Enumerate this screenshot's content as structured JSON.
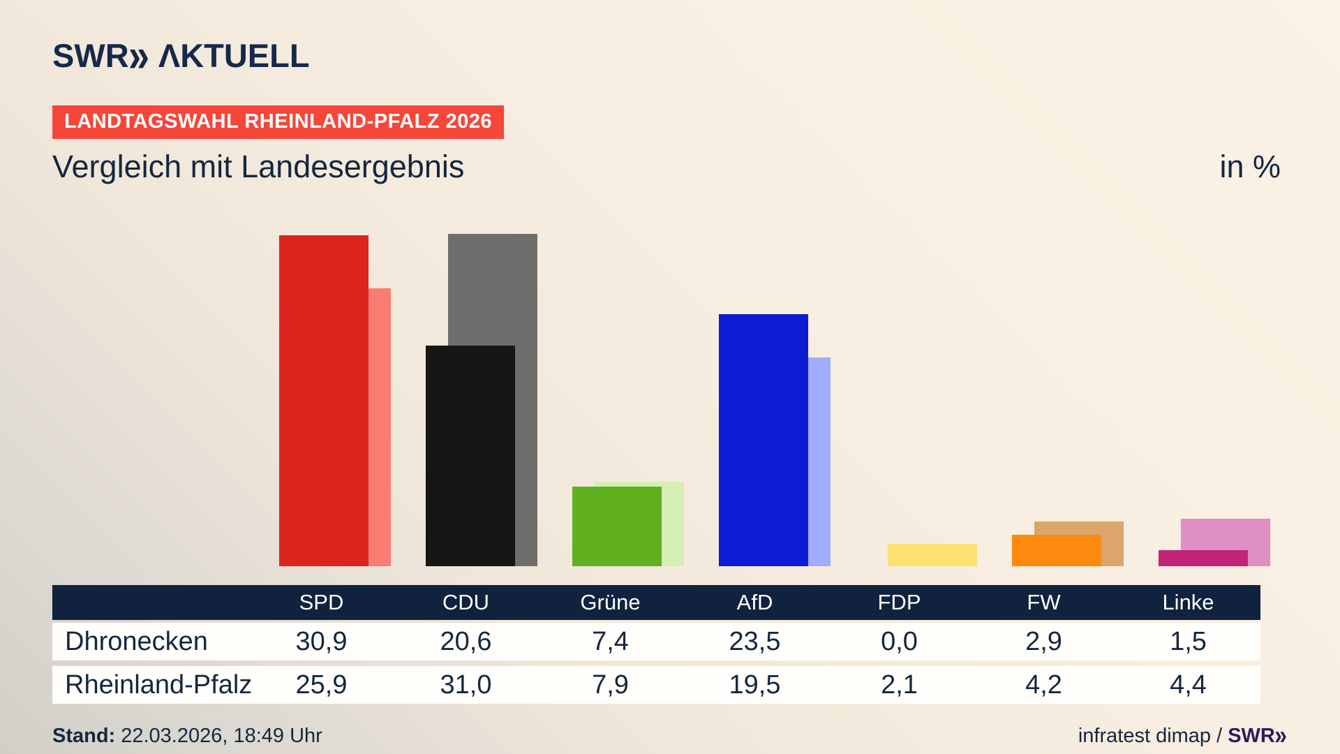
{
  "brand": {
    "logo_text": "SWR",
    "logo_chevrons": "»",
    "logo_suffix": "ΛKTUELL"
  },
  "badge": {
    "label": "LANDTAGSWAHL RHEINLAND-PFALZ 2026",
    "bg_color": "#f4473a"
  },
  "title": "Vergleich mit Landesergebnis",
  "unit_label": "in %",
  "chart_data": {
    "type": "bar",
    "categories": [
      "SPD",
      "CDU",
      "Grüne",
      "AfD",
      "FDP",
      "FW",
      "Linke"
    ],
    "series": [
      {
        "name": "Dhronecken",
        "role": "local",
        "values": [
          30.9,
          20.6,
          7.4,
          23.5,
          0.0,
          2.9,
          1.5
        ]
      },
      {
        "name": "Rheinland-Pfalz",
        "role": "state",
        "values": [
          25.9,
          31.0,
          7.9,
          19.5,
          2.1,
          4.2,
          4.4
        ]
      }
    ],
    "party_colors_local": [
      "#da241d",
      "#161616",
      "#60b01f",
      "#0d1cd2",
      "#ffd633",
      "#fb8a0e",
      "#c02578"
    ],
    "party_colors_state": [
      "#f97d72",
      "#6f6e6c",
      "#d5efb5",
      "#9fadfc",
      "#fde170",
      "#dda56c",
      "#e08fc4"
    ],
    "unit": "%",
    "ylim": [
      0,
      32
    ],
    "grid": false,
    "legend_position": "table-below-chart"
  },
  "table": {
    "rows": [
      {
        "label": "Dhronecken",
        "cells": [
          "30,9",
          "20,6",
          "7,4",
          "23,5",
          "0,0",
          "2,9",
          "1,5"
        ]
      },
      {
        "label": "Rheinland-Pfalz",
        "cells": [
          "25,9",
          "31,0",
          "7,9",
          "19,5",
          "2,1",
          "4,2",
          "4,4"
        ]
      }
    ],
    "header_colors": {
      "bg": "#10223e",
      "text": "#ffffff"
    }
  },
  "footer": {
    "stand_label": "Stand:",
    "stand_value": "22.03.2026, 18:49 Uhr",
    "source_text": "infratest dimap /",
    "source_brand": "SWR",
    "source_brand_chevrons": "»"
  }
}
